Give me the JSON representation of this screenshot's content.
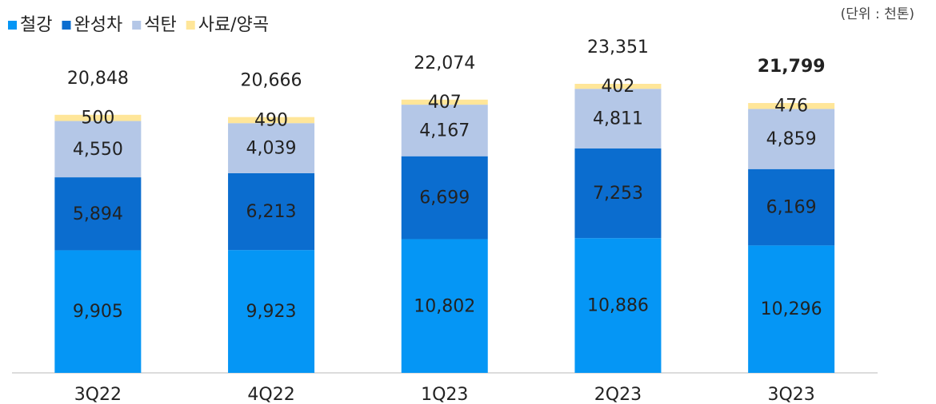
{
  "chart_data": {
    "type": "stacked_bar",
    "unit": "(단위 : 천톤)",
    "categories": [
      "3Q22",
      "4Q22",
      "1Q23",
      "2Q23",
      "3Q23"
    ],
    "series": [
      {
        "name": "철강",
        "color": "#0596f5",
        "values": [
          9905,
          9923,
          10802,
          10886,
          10296
        ],
        "value_labels": [
          "9,905",
          "9,923",
          "10,802",
          "10,886",
          "10,296"
        ]
      },
      {
        "name": "완성차",
        "color": "#0b6dcf",
        "values": [
          5894,
          6213,
          6699,
          7253,
          6169
        ],
        "value_labels": [
          "5,894",
          "6,213",
          "6,699",
          "7,253",
          "6,169"
        ]
      },
      {
        "name": "석탄",
        "color": "#b4c7e7",
        "values": [
          4550,
          4039,
          4167,
          4811,
          4859
        ],
        "value_labels": [
          "4,550",
          "4,039",
          "4,167",
          "4,811",
          "4,859"
        ]
      },
      {
        "name": "사료/양곡",
        "color": "#ffe699",
        "values": [
          500,
          490,
          407,
          402,
          476
        ],
        "value_labels": [
          "500",
          "490",
          "407",
          "402",
          "476"
        ]
      }
    ],
    "totals": [
      20848,
      20666,
      22074,
      23351,
      21799
    ],
    "total_labels": [
      "20,848",
      "20,666",
      "22,074",
      "23,351",
      "21,799"
    ]
  }
}
